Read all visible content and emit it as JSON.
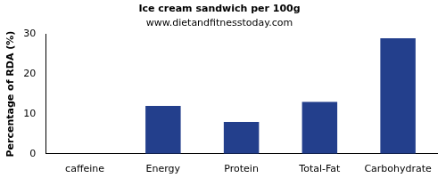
{
  "chart_data": {
    "type": "bar",
    "title": "Ice cream sandwich per 100g",
    "subtitle": "www.dietandfitnesstoday.com",
    "y_label": "Percentage of RDA (%)",
    "categories": [
      "caffeine",
      "Energy",
      "Protein",
      "Total-Fat",
      "Carbohydrate"
    ],
    "values": [
      0,
      12,
      8,
      13,
      29
    ],
    "color": "#233f8c",
    "ylim": [
      0,
      30
    ],
    "yticks": [
      0,
      10,
      20,
      30
    ],
    "grid": false
  }
}
